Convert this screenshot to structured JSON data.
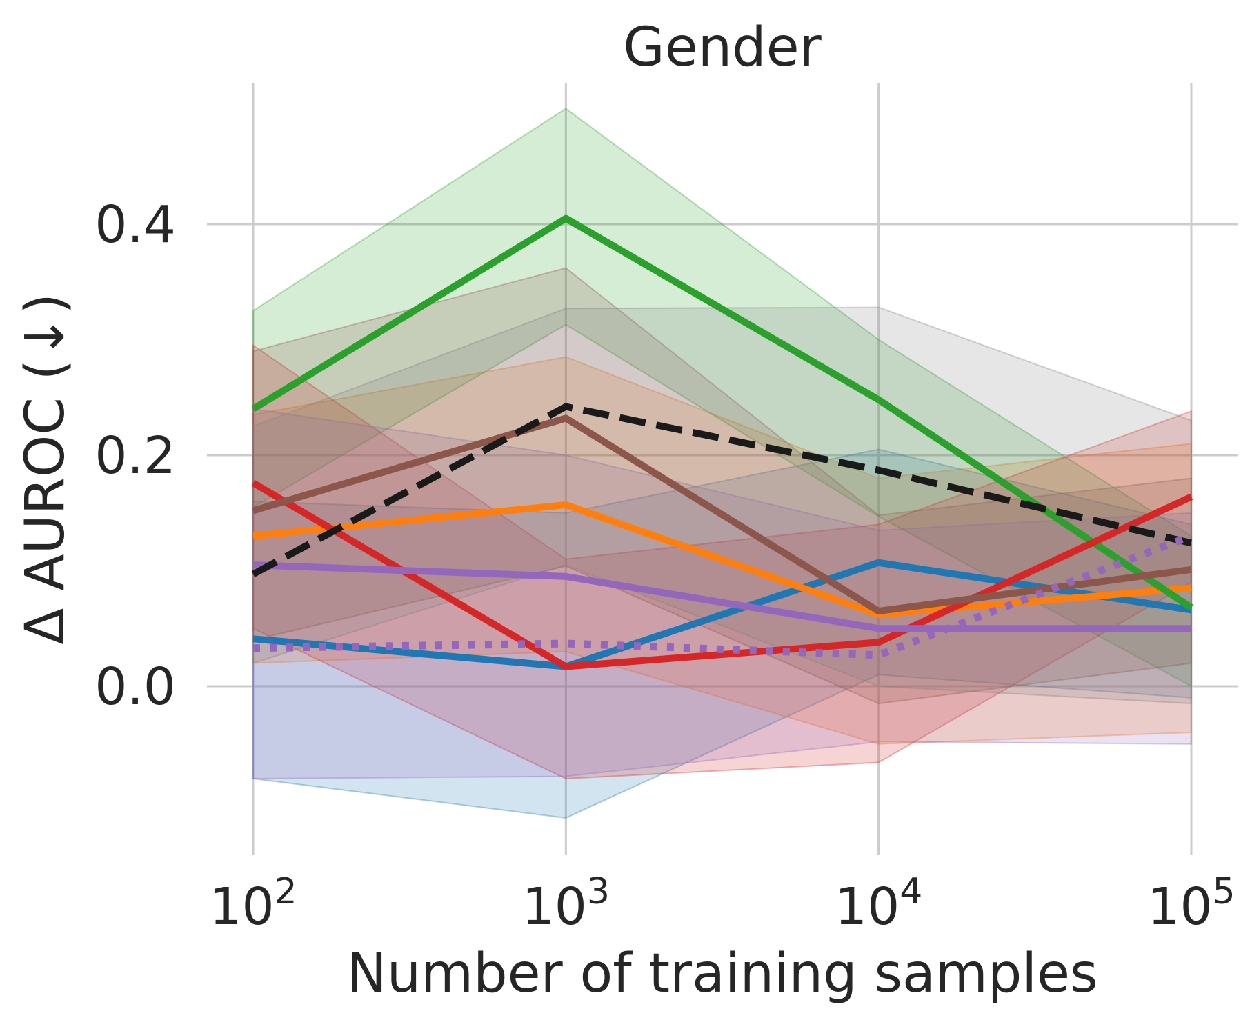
{
  "chart_data": {
    "type": "line",
    "title": "Gender",
    "xlabel": "Number of training samples",
    "ylabel": "Δ AUROC (↓)",
    "x_scale": "log",
    "x": [
      100,
      1000,
      10000,
      100000
    ],
    "x_tick_labels": [
      {
        "base": "10",
        "exp": "2"
      },
      {
        "base": "10",
        "exp": "3"
      },
      {
        "base": "10",
        "exp": "4"
      },
      {
        "base": "10",
        "exp": "5"
      }
    ],
    "y_ticks": [
      0.0,
      0.2,
      0.4
    ],
    "y_tick_labels": [
      "0.0",
      "0.2",
      "0.4"
    ],
    "ylim": [
      -0.145,
      0.525
    ],
    "grid": true,
    "series": [
      {
        "name": "blue",
        "color": "#1f77b4",
        "style": "solid",
        "values": [
          0.041,
          0.017,
          0.107,
          0.066
        ],
        "lower": [
          -0.08,
          -0.114,
          0.01,
          -0.01
        ],
        "upper": [
          0.16,
          0.15,
          0.205,
          0.14
        ]
      },
      {
        "name": "orange",
        "color": "#ff7f0e",
        "style": "solid",
        "values": [
          0.13,
          0.157,
          0.062,
          0.085
        ],
        "lower": [
          0.02,
          0.03,
          -0.05,
          -0.04
        ],
        "upper": [
          0.235,
          0.285,
          0.18,
          0.21
        ]
      },
      {
        "name": "green",
        "color": "#2ca02c",
        "style": "solid",
        "values": [
          0.24,
          0.405,
          0.248,
          0.068
        ],
        "lower": [
          0.155,
          0.313,
          0.147,
          0.0
        ],
        "upper": [
          0.325,
          0.5,
          0.3,
          0.13
        ]
      },
      {
        "name": "red",
        "color": "#d62728",
        "style": "solid",
        "values": [
          0.176,
          0.017,
          0.038,
          0.164
        ],
        "lower": [
          0.05,
          -0.08,
          -0.066,
          0.09
        ],
        "upper": [
          0.295,
          0.11,
          0.14,
          0.238
        ]
      },
      {
        "name": "purple",
        "color": "#9467bd",
        "style": "solid",
        "values": [
          0.105,
          0.095,
          0.05,
          0.05
        ],
        "lower": [
          -0.08,
          -0.078,
          -0.048,
          -0.05
        ],
        "upper": [
          0.24,
          0.2,
          0.135,
          0.15
        ]
      },
      {
        "name": "brown",
        "color": "#8c564b",
        "style": "solid",
        "values": [
          0.152,
          0.232,
          0.065,
          0.101
        ],
        "lower": [
          0.04,
          0.104,
          -0.015,
          0.02
        ],
        "upper": [
          0.29,
          0.362,
          0.148,
          0.18
        ]
      },
      {
        "name": "gray",
        "color": "#808080",
        "style": "none",
        "values": [
          0.1,
          0.24,
          0.19,
          0.12
        ],
        "lower": [
          0.02,
          0.105,
          0.0,
          -0.015
        ],
        "upper": [
          0.225,
          0.327,
          0.328,
          0.23
        ]
      },
      {
        "name": "black-dashed",
        "color": "#1a1a1a",
        "style": "dashed",
        "values": [
          0.097,
          0.242,
          0.187,
          0.124
        ]
      },
      {
        "name": "purple-dotted",
        "color": "#9467bd",
        "style": "dotted",
        "values": [
          0.033,
          0.037,
          0.027,
          0.13
        ]
      }
    ]
  }
}
